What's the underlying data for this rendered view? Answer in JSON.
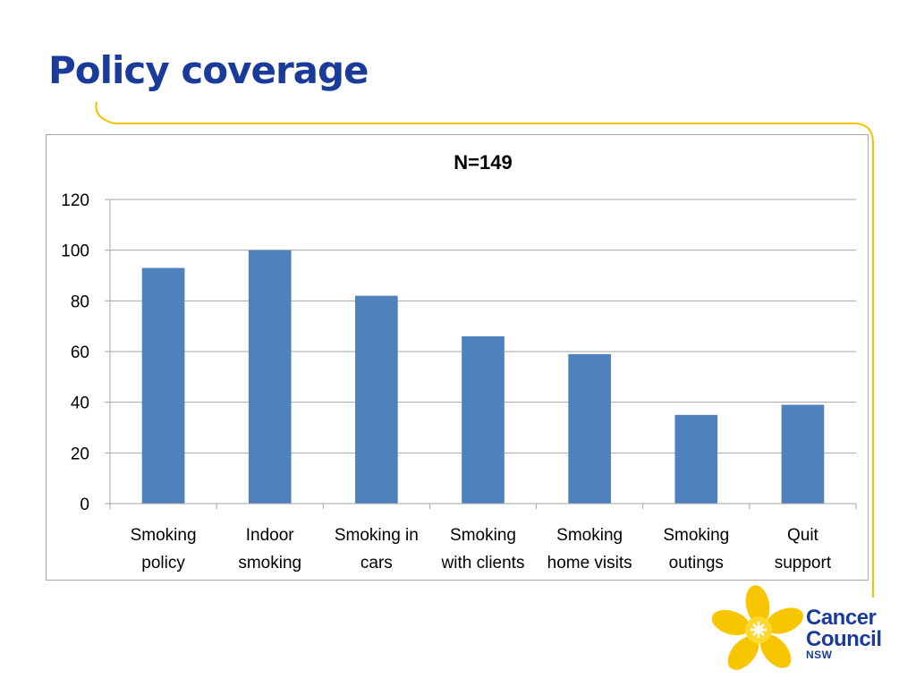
{
  "slide": {
    "title": "Policy coverage"
  },
  "colors": {
    "title": "#1b3b9a",
    "accent_line": "#f2c200",
    "bar": "#4f81bd",
    "grid": "#a6a6a6",
    "logo_flower": "#f7c600"
  },
  "chart_data": {
    "type": "bar",
    "title": "N=149",
    "categories": [
      [
        "Smoking",
        "policy"
      ],
      [
        "Indoor",
        "smoking"
      ],
      [
        "Smoking in",
        "cars"
      ],
      [
        "Smoking",
        "with clients"
      ],
      [
        "Smoking",
        "home visits"
      ],
      [
        "Smoking",
        "outings"
      ],
      [
        "Quit",
        "support"
      ]
    ],
    "values": [
      93,
      100,
      82,
      66,
      59,
      35,
      39
    ],
    "ylim": [
      0,
      120
    ],
    "yticks": [
      0,
      20,
      40,
      60,
      80,
      100,
      120
    ],
    "xlabel": "",
    "ylabel": "",
    "grid": true,
    "legend": "none"
  },
  "logo": {
    "line1": "Cancer",
    "line2": "Council",
    "line3": "NSW",
    "icon": "daffodil-icon"
  }
}
